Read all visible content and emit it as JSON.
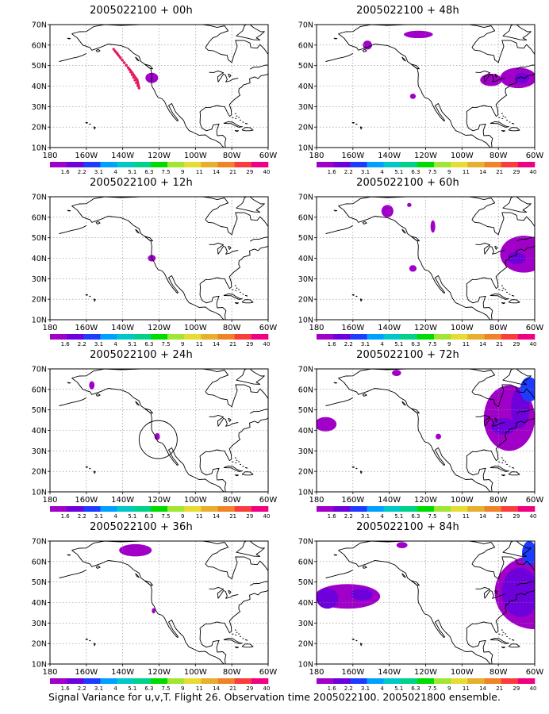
{
  "panels": [
    {
      "title": "2005022100 + 00h",
      "step": "00h"
    },
    {
      "title": "2005022100 + 48h",
      "step": "48h"
    },
    {
      "title": "2005022100 + 12h",
      "step": "12h"
    },
    {
      "title": "2005022100 + 60h",
      "step": "60h"
    },
    {
      "title": "2005022100 + 24h",
      "step": "24h"
    },
    {
      "title": "2005022100 + 72h",
      "step": "72h"
    },
    {
      "title": "2005022100 + 36h",
      "step": "36h"
    },
    {
      "title": "2005022100 + 84h",
      "step": "84h"
    }
  ],
  "lat_labels": [
    "10N",
    "20N",
    "30N",
    "40N",
    "50N",
    "60N",
    "70N"
  ],
  "lon_labels": [
    "180",
    "160W",
    "140W",
    "120W",
    "100W",
    "80W",
    "60W"
  ],
  "colorbar": {
    "labels": [
      "1.6",
      "2.2",
      "3.1",
      "4",
      "5.1",
      "6.3",
      "7.5",
      "9",
      "11",
      "14",
      "21",
      "29",
      "40"
    ],
    "colors": [
      "#a000c8",
      "#6e00dc",
      "#1e3cff",
      "#00a0ff",
      "#00c8c8",
      "#00d28c",
      "#00dc00",
      "#a0e632",
      "#e6dc32",
      "#e6af2d",
      "#f08228",
      "#fa3c3c",
      "#f00082"
    ]
  },
  "caption": "Signal Variance for u,v,T. Flight 26. Observation time 2005022100. 2005021800 ensemble."
}
